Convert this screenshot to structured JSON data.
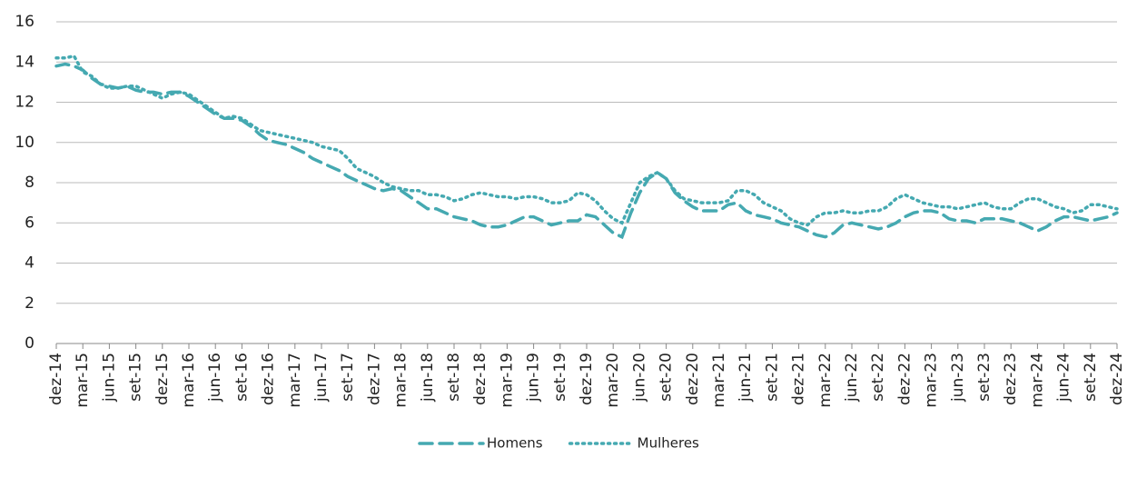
{
  "chart_data": {
    "type": "line",
    "categories": [
      "dez-14",
      null,
      null,
      "mar-15",
      null,
      null,
      "jun-15",
      null,
      null,
      "set-15",
      null,
      null,
      "dez-15",
      null,
      null,
      "mar-16",
      null,
      null,
      "jun-16",
      null,
      null,
      "set-16",
      null,
      null,
      "dez-16",
      null,
      null,
      "mar-17",
      null,
      null,
      "jun-17",
      null,
      null,
      "set-17",
      null,
      null,
      "dez-17",
      null,
      null,
      "mar-18",
      null,
      null,
      "jun-18",
      null,
      null,
      "set-18",
      null,
      null,
      "dez-18",
      null,
      null,
      "mar-19",
      null,
      null,
      "jun-19",
      null,
      null,
      "set-19",
      null,
      null,
      "dez-19",
      null,
      null,
      "mar-20",
      null,
      null,
      "jun-20",
      null,
      null,
      "set-20",
      null,
      null,
      "dez-20",
      null,
      null,
      "mar-21",
      null,
      null,
      "jun-21",
      null,
      null,
      "set-21",
      null,
      null,
      "dez-21",
      null,
      null,
      "mar-22",
      null,
      null,
      "jun-22",
      null,
      null,
      "set-22",
      null,
      null,
      "dez-22",
      null,
      null,
      "mar-23",
      null,
      null,
      "jun-23",
      null,
      null,
      "set-23",
      null,
      null,
      "dez-23",
      null,
      null,
      "mar-24",
      null,
      null,
      "jun-24",
      null,
      null,
      "set-24",
      null,
      null,
      "dez-24"
    ],
    "series": [
      {
        "name": "Homens",
        "color": "#45a9b1",
        "style": "dashed",
        "values": [
          13.8,
          13.9,
          13.8,
          13.6,
          13.2,
          12.9,
          12.8,
          12.7,
          12.8,
          12.6,
          12.5,
          12.5,
          12.4,
          12.5,
          12.5,
          12.3,
          12.0,
          11.7,
          11.4,
          11.2,
          11.2,
          11.1,
          10.8,
          10.4,
          10.1,
          10.0,
          9.9,
          9.7,
          9.5,
          9.2,
          9.0,
          8.8,
          8.6,
          8.3,
          8.1,
          7.9,
          7.7,
          7.6,
          7.7,
          7.6,
          7.3,
          7.0,
          6.7,
          6.7,
          6.5,
          6.3,
          6.2,
          6.1,
          5.9,
          5.8,
          5.8,
          5.9,
          6.1,
          6.3,
          6.3,
          6.1,
          5.9,
          6.0,
          6.1,
          6.1,
          6.4,
          6.3,
          5.9,
          5.5,
          5.3,
          6.5,
          7.5,
          8.2,
          8.5,
          8.2,
          7.5,
          7.1,
          6.8,
          6.6,
          6.6,
          6.6,
          6.9,
          7.0,
          6.6,
          6.4,
          6.3,
          6.2,
          6.0,
          5.9,
          5.8,
          5.6,
          5.4,
          5.3,
          5.5,
          5.9,
          6.0,
          5.9,
          5.8,
          5.7,
          5.8,
          6.0,
          6.3,
          6.5,
          6.6,
          6.6,
          6.5,
          6.2,
          6.1,
          6.1,
          6.0,
          6.2,
          6.2,
          6.2,
          6.1,
          6.0,
          5.8,
          5.6,
          5.8,
          6.1,
          6.3,
          6.3,
          6.2,
          6.1,
          6.2,
          6.3,
          6.5
        ]
      },
      {
        "name": "Mulheres",
        "color": "#45a9b1",
        "style": "dotted",
        "values": [
          14.2,
          14.2,
          14.3,
          13.5,
          13.3,
          12.9,
          12.7,
          12.7,
          12.8,
          12.8,
          12.6,
          12.4,
          12.2,
          12.4,
          12.5,
          12.4,
          12.1,
          11.8,
          11.5,
          11.2,
          11.3,
          11.2,
          10.9,
          10.6,
          10.5,
          10.4,
          10.3,
          10.2,
          10.1,
          10.0,
          9.8,
          9.7,
          9.6,
          9.2,
          8.7,
          8.5,
          8.3,
          8.0,
          7.8,
          7.7,
          7.6,
          7.6,
          7.4,
          7.4,
          7.3,
          7.1,
          7.2,
          7.4,
          7.5,
          7.4,
          7.3,
          7.3,
          7.2,
          7.3,
          7.3,
          7.2,
          7.0,
          7.0,
          7.1,
          7.5,
          7.4,
          7.1,
          6.6,
          6.2,
          6.0,
          7.0,
          8.0,
          8.3,
          8.5,
          8.2,
          7.6,
          7.2,
          7.1,
          7.0,
          7.0,
          7.0,
          7.1,
          7.6,
          7.6,
          7.4,
          7.0,
          6.8,
          6.6,
          6.2,
          6.0,
          5.9,
          6.3,
          6.5,
          6.5,
          6.6,
          6.5,
          6.5,
          6.6,
          6.6,
          6.8,
          7.2,
          7.4,
          7.2,
          7.0,
          6.9,
          6.8,
          6.8,
          6.7,
          6.8,
          6.9,
          7.0,
          6.8,
          6.7,
          6.7,
          7.0,
          7.2,
          7.2,
          7.0,
          6.8,
          6.7,
          6.5,
          6.6,
          6.9,
          6.9,
          6.8,
          6.7
        ]
      }
    ],
    "ylim": [
      0,
      16
    ],
    "yticks": [
      0,
      2,
      4,
      6,
      8,
      10,
      12,
      14,
      16
    ],
    "grid": true,
    "legend": "bottom"
  }
}
